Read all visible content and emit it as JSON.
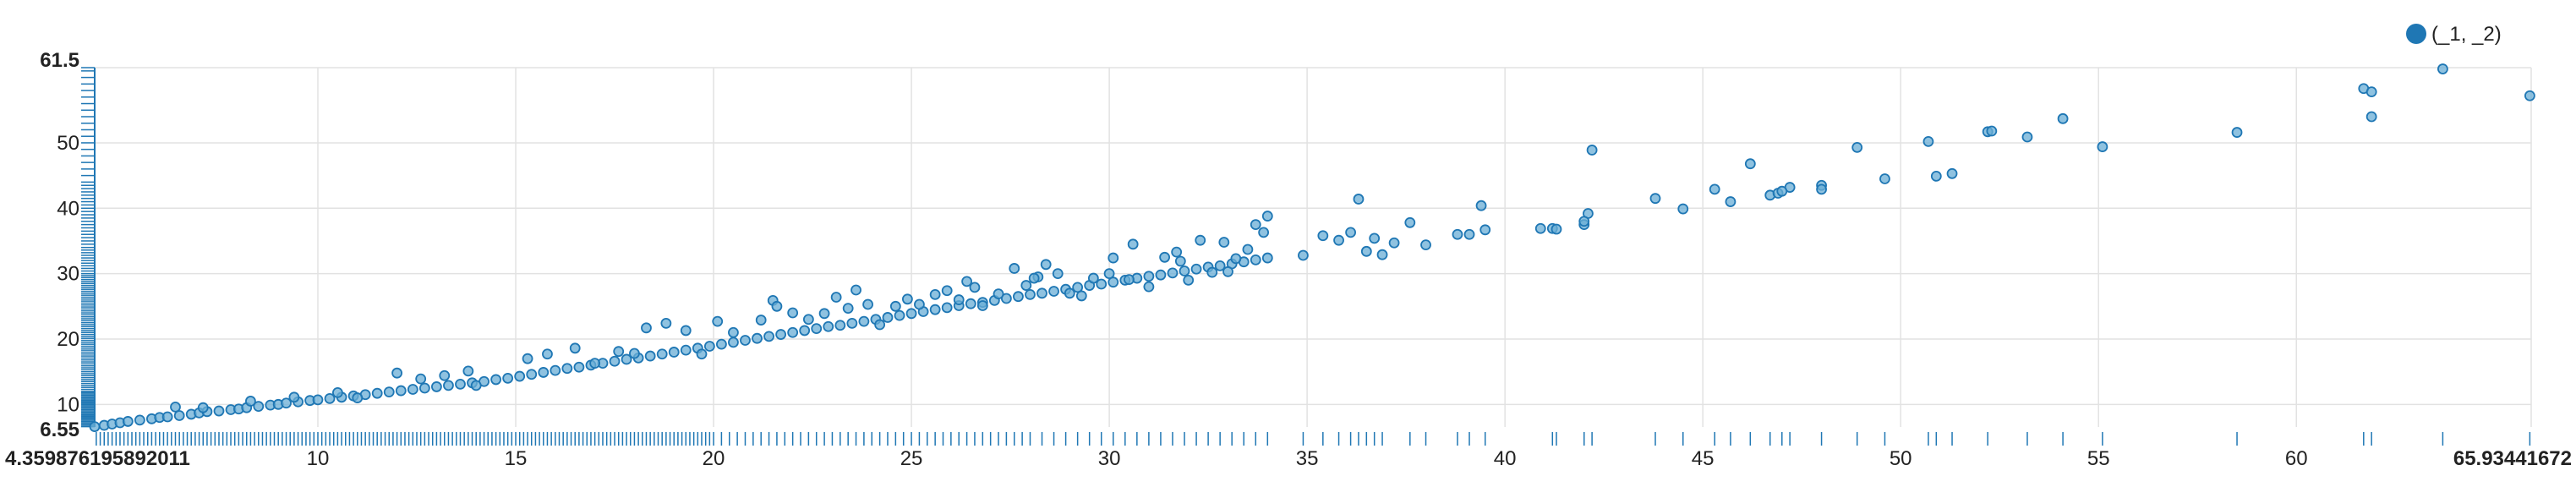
{
  "chart_data": {
    "type": "scatter",
    "title": "",
    "xlabel": "",
    "ylabel": "",
    "xlim": [
      4.359876195892011,
      65.93441672
    ],
    "ylim": [
      6.55,
      61.5
    ],
    "x_min_label": "4.359876195892011",
    "x_max_label": "65.93441672",
    "y_min_label": "6.55",
    "y_max_label": "61.5",
    "x_ticks": [
      10,
      15,
      20,
      25,
      30,
      35,
      40,
      45,
      50,
      55,
      60
    ],
    "y_ticks": [
      10,
      20,
      30,
      40,
      50
    ],
    "grid": true,
    "legend": {
      "placement": "top-right",
      "label": "(_1, _2)"
    },
    "colors": {
      "point_fill": "#6aaed6",
      "point_stroke": "#1f77b4",
      "rug": "#1f77b4",
      "grid": "#e2e2e2",
      "axis": "#1f77b4"
    },
    "series": [
      {
        "name": "(_1, _2)",
        "points": [
          [
            4.36,
            6.6
          ],
          [
            4.6,
            6.8
          ],
          [
            4.8,
            7.0
          ],
          [
            5.0,
            7.2
          ],
          [
            5.2,
            7.4
          ],
          [
            5.5,
            7.6
          ],
          [
            5.8,
            7.8
          ],
          [
            6.0,
            8.0
          ],
          [
            6.2,
            8.1
          ],
          [
            6.5,
            8.3
          ],
          [
            6.8,
            8.5
          ],
          [
            7.0,
            8.7
          ],
          [
            7.2,
            8.9
          ],
          [
            7.5,
            9.0
          ],
          [
            7.8,
            9.2
          ],
          [
            8.0,
            9.3
          ],
          [
            8.2,
            9.5
          ],
          [
            8.5,
            9.7
          ],
          [
            8.8,
            9.9
          ],
          [
            9.0,
            10.0
          ],
          [
            9.2,
            10.2
          ],
          [
            9.5,
            10.4
          ],
          [
            9.8,
            10.6
          ],
          [
            10.0,
            10.7
          ],
          [
            10.3,
            10.9
          ],
          [
            10.6,
            11.1
          ],
          [
            10.9,
            11.3
          ],
          [
            11.2,
            11.5
          ],
          [
            11.5,
            11.7
          ],
          [
            11.8,
            11.9
          ],
          [
            12.1,
            12.1
          ],
          [
            12.4,
            12.3
          ],
          [
            12.7,
            12.5
          ],
          [
            13.0,
            12.7
          ],
          [
            13.3,
            12.9
          ],
          [
            13.6,
            13.1
          ],
          [
            13.9,
            13.3
          ],
          [
            14.2,
            13.5
          ],
          [
            14.5,
            13.8
          ],
          [
            14.8,
            14.0
          ],
          [
            15.1,
            14.3
          ],
          [
            15.4,
            14.6
          ],
          [
            15.7,
            14.9
          ],
          [
            16.0,
            15.2
          ],
          [
            16.3,
            15.5
          ],
          [
            16.6,
            15.7
          ],
          [
            16.9,
            16.0
          ],
          [
            17.2,
            16.3
          ],
          [
            17.5,
            16.6
          ],
          [
            17.8,
            16.9
          ],
          [
            18.1,
            17.1
          ],
          [
            18.4,
            17.4
          ],
          [
            18.7,
            17.7
          ],
          [
            19.0,
            18.0
          ],
          [
            19.3,
            18.3
          ],
          [
            19.6,
            18.6
          ],
          [
            19.9,
            18.9
          ],
          [
            20.2,
            19.2
          ],
          [
            20.5,
            19.5
          ],
          [
            20.8,
            19.8
          ],
          [
            21.1,
            20.1
          ],
          [
            21.4,
            20.4
          ],
          [
            21.7,
            20.7
          ],
          [
            22.0,
            21.0
          ],
          [
            22.3,
            21.3
          ],
          [
            22.6,
            21.6
          ],
          [
            22.9,
            21.9
          ],
          [
            23.2,
            22.1
          ],
          [
            23.5,
            22.4
          ],
          [
            23.8,
            22.7
          ],
          [
            24.1,
            23.0
          ],
          [
            24.4,
            23.3
          ],
          [
            24.7,
            23.6
          ],
          [
            25.0,
            23.9
          ],
          [
            25.3,
            24.2
          ],
          [
            25.6,
            24.5
          ],
          [
            25.9,
            24.8
          ],
          [
            26.2,
            25.1
          ],
          [
            26.5,
            25.4
          ],
          [
            26.8,
            25.6
          ],
          [
            27.1,
            25.9
          ],
          [
            27.4,
            26.2
          ],
          [
            27.7,
            26.5
          ],
          [
            28.0,
            26.8
          ],
          [
            28.3,
            27.0
          ],
          [
            28.6,
            27.3
          ],
          [
            28.9,
            27.6
          ],
          [
            29.2,
            27.9
          ],
          [
            29.5,
            28.2
          ],
          [
            29.8,
            28.4
          ],
          [
            30.1,
            28.7
          ],
          [
            30.4,
            29.0
          ],
          [
            30.7,
            29.3
          ],
          [
            31.0,
            29.6
          ],
          [
            31.3,
            29.8
          ],
          [
            31.6,
            30.1
          ],
          [
            31.9,
            30.4
          ],
          [
            32.2,
            30.7
          ],
          [
            32.5,
            31.0
          ],
          [
            32.8,
            31.2
          ],
          [
            33.1,
            31.5
          ],
          [
            33.4,
            31.8
          ],
          [
            33.7,
            32.1
          ],
          [
            34.0,
            32.4
          ],
          [
            6.4,
            9.6
          ],
          [
            7.1,
            9.5
          ],
          [
            8.3,
            10.5
          ],
          [
            9.4,
            11.1
          ],
          [
            10.5,
            11.8
          ],
          [
            11.0,
            11.0
          ],
          [
            12.0,
            14.8
          ],
          [
            12.6,
            13.9
          ],
          [
            13.2,
            14.4
          ],
          [
            13.8,
            15.1
          ],
          [
            14.0,
            12.9
          ],
          [
            15.3,
            17.0
          ],
          [
            15.8,
            17.7
          ],
          [
            16.5,
            18.6
          ],
          [
            17.0,
            16.3
          ],
          [
            17.6,
            18.1
          ],
          [
            18.0,
            17.8
          ],
          [
            18.3,
            21.7
          ],
          [
            18.8,
            22.4
          ],
          [
            19.3,
            21.3
          ],
          [
            19.7,
            17.7
          ],
          [
            20.1,
            22.7
          ],
          [
            20.5,
            21.0
          ],
          [
            21.2,
            22.9
          ],
          [
            21.5,
            25.9
          ],
          [
            21.6,
            25.0
          ],
          [
            22.4,
            23.0
          ],
          [
            22.8,
            23.9
          ],
          [
            23.1,
            26.4
          ],
          [
            23.4,
            24.7
          ],
          [
            23.6,
            27.5
          ],
          [
            23.9,
            25.3
          ],
          [
            24.2,
            22.2
          ],
          [
            24.6,
            25.0
          ],
          [
            24.9,
            26.1
          ],
          [
            25.2,
            25.3
          ],
          [
            25.6,
            26.8
          ],
          [
            25.9,
            27.4
          ],
          [
            26.2,
            26.0
          ],
          [
            26.6,
            27.9
          ],
          [
            26.8,
            25.1
          ],
          [
            27.2,
            26.9
          ],
          [
            27.6,
            30.8
          ],
          [
            27.9,
            28.2
          ],
          [
            28.2,
            29.5
          ],
          [
            28.4,
            31.4
          ],
          [
            28.7,
            30.0
          ],
          [
            29.0,
            27.0
          ],
          [
            29.3,
            26.6
          ],
          [
            29.6,
            29.3
          ],
          [
            30.0,
            30.0
          ],
          [
            30.1,
            32.4
          ],
          [
            30.5,
            29.1
          ],
          [
            30.6,
            34.5
          ],
          [
            31.0,
            28.0
          ],
          [
            31.4,
            32.5
          ],
          [
            31.7,
            33.3
          ],
          [
            32.0,
            29.0
          ],
          [
            32.3,
            35.1
          ],
          [
            32.6,
            30.2
          ],
          [
            32.9,
            34.8
          ],
          [
            33.2,
            32.3
          ],
          [
            33.5,
            33.7
          ],
          [
            33.7,
            37.5
          ],
          [
            33.9,
            36.3
          ],
          [
            34.0,
            38.8
          ],
          [
            34.9,
            32.8
          ],
          [
            35.4,
            35.8
          ],
          [
            35.8,
            35.1
          ],
          [
            36.1,
            36.3
          ],
          [
            36.3,
            41.4
          ],
          [
            36.5,
            33.4
          ],
          [
            36.7,
            35.4
          ],
          [
            36.9,
            32.9
          ],
          [
            37.2,
            34.7
          ],
          [
            37.6,
            37.8
          ],
          [
            38.0,
            34.4
          ],
          [
            38.8,
            36.0
          ],
          [
            39.1,
            36.0
          ],
          [
            39.4,
            40.4
          ],
          [
            39.5,
            36.7
          ],
          [
            41.2,
            36.9
          ],
          [
            41.3,
            36.8
          ],
          [
            42.0,
            37.5
          ],
          [
            42.1,
            39.2
          ],
          [
            42.2,
            48.9
          ],
          [
            42.0,
            38.0
          ],
          [
            43.8,
            41.5
          ],
          [
            44.5,
            39.9
          ],
          [
            45.3,
            42.9
          ],
          [
            45.7,
            41.0
          ],
          [
            46.2,
            46.8
          ],
          [
            46.7,
            42.0
          ],
          [
            46.9,
            42.3
          ],
          [
            47.2,
            43.2
          ],
          [
            47.0,
            42.6
          ],
          [
            48.0,
            43.5
          ],
          [
            48.0,
            42.9
          ],
          [
            48.9,
            49.3
          ],
          [
            49.6,
            44.5
          ],
          [
            50.7,
            50.2
          ],
          [
            50.9,
            44.9
          ],
          [
            51.3,
            45.3
          ],
          [
            52.2,
            51.7
          ],
          [
            52.3,
            51.8
          ],
          [
            53.2,
            50.9
          ],
          [
            54.1,
            53.7
          ],
          [
            55.1,
            49.4
          ],
          [
            58.5,
            51.6
          ],
          [
            61.7,
            58.3
          ],
          [
            61.9,
            57.8
          ],
          [
            61.9,
            54.0
          ],
          [
            63.7,
            61.3
          ],
          [
            65.9,
            57.2
          ],
          [
            40.9,
            36.9
          ],
          [
            33.0,
            30.3
          ],
          [
            28.1,
            29.3
          ],
          [
            31.8,
            31.9
          ],
          [
            26.4,
            28.8
          ],
          [
            22.0,
            24.0
          ]
        ]
      }
    ],
    "rug_x": [
      4.4,
      4.5,
      4.6,
      4.7,
      4.8,
      4.9,
      5.0,
      5.1,
      5.2,
      5.3,
      5.4,
      5.5,
      5.6,
      5.7,
      5.8,
      5.9,
      6.0,
      6.1,
      6.2,
      6.3,
      6.4,
      6.5,
      6.6,
      6.7,
      6.8,
      6.9,
      7.0,
      7.1,
      7.2,
      7.3,
      7.4,
      7.5,
      7.6,
      7.7,
      7.8,
      7.9,
      8.0,
      8.1,
      8.2,
      8.3,
      8.4,
      8.5,
      8.6,
      8.7,
      8.8,
      8.9,
      9.0,
      9.1,
      9.2,
      9.3,
      9.4,
      9.5,
      9.6,
      9.7,
      9.8,
      9.9,
      10.0,
      10.1,
      10.2,
      10.3,
      10.4,
      10.5,
      10.6,
      10.7,
      10.8,
      10.9,
      11.0,
      11.1,
      11.2,
      11.3,
      11.4,
      11.5,
      11.6,
      11.7,
      11.8,
      11.9,
      12.0,
      12.1,
      12.2,
      12.3,
      12.4,
      12.5,
      12.6,
      12.7,
      12.8,
      12.9,
      13.0,
      13.1,
      13.2,
      13.3,
      13.4,
      13.5,
      13.6,
      13.7,
      13.8,
      13.9,
      14.0,
      14.1,
      14.2,
      14.3,
      14.4,
      14.5,
      14.6,
      14.7,
      14.8,
      14.9,
      15.0,
      15.1,
      15.2,
      15.3,
      15.4,
      15.5,
      15.6,
      15.7,
      15.8,
      15.9,
      16.0,
      16.1,
      16.2,
      16.3,
      16.4,
      16.5,
      16.6,
      16.7,
      16.8,
      16.9,
      17.0,
      17.1,
      17.2,
      17.3,
      17.4,
      17.5,
      17.6,
      17.7,
      17.8,
      17.9,
      18.0,
      18.1,
      18.2,
      18.3,
      18.4,
      18.5,
      18.6,
      18.7,
      18.8,
      18.9,
      19.0,
      19.1,
      19.2,
      19.3,
      19.4,
      19.5,
      19.6,
      19.7,
      19.8,
      19.9,
      20.0,
      20.2,
      20.4,
      20.6,
      20.8,
      21.0,
      21.2,
      21.4,
      21.6,
      21.8,
      22.0,
      22.2,
      22.4,
      22.6,
      22.8,
      23.0,
      23.2,
      23.4,
      23.6,
      23.8,
      24.0,
      24.2,
      24.4,
      24.6,
      24.8,
      25.0,
      25.2,
      25.4,
      25.6,
      25.8,
      26.0,
      26.2,
      26.4,
      26.6,
      26.8,
      27.0,
      27.2,
      27.4,
      27.6,
      27.8,
      28.0,
      28.3,
      28.6,
      28.9,
      29.2,
      29.5,
      29.8,
      30.1,
      30.4,
      30.7,
      31.0,
      31.3,
      31.6,
      31.9,
      32.2,
      32.5,
      32.8,
      33.1,
      33.4,
      33.7,
      34.0,
      34.9,
      35.4,
      35.8,
      36.1,
      36.3,
      36.5,
      36.7,
      36.9,
      37.6,
      38.0,
      38.8,
      39.1,
      39.5,
      41.2,
      41.3,
      42.0,
      42.2,
      43.8,
      44.5,
      45.3,
      45.7,
      46.2,
      46.7,
      47.0,
      47.2,
      48.0,
      48.9,
      49.6,
      50.7,
      50.9,
      51.3,
      52.2,
      53.2,
      54.1,
      55.1,
      58.5,
      61.7,
      61.9,
      63.7,
      65.9
    ],
    "rug_y": [
      6.6,
      6.8,
      7.0,
      7.2,
      7.4,
      7.6,
      7.8,
      8.0,
      8.2,
      8.4,
      8.6,
      8.8,
      9.0,
      9.2,
      9.4,
      9.6,
      9.8,
      10.0,
      10.2,
      10.4,
      10.6,
      10.8,
      11.0,
      11.2,
      11.4,
      11.6,
      11.8,
      12.0,
      12.3,
      12.6,
      12.9,
      13.2,
      13.5,
      13.8,
      14.1,
      14.4,
      14.7,
      15.0,
      15.3,
      15.6,
      15.9,
      16.2,
      16.5,
      16.8,
      17.1,
      17.4,
      17.7,
      18.0,
      18.3,
      18.6,
      18.9,
      19.2,
      19.5,
      19.8,
      20.1,
      20.4,
      20.7,
      21.0,
      21.3,
      21.6,
      21.9,
      22.2,
      22.5,
      22.8,
      23.1,
      23.4,
      23.7,
      24.0,
      24.3,
      24.6,
      24.9,
      25.2,
      25.5,
      25.8,
      26.1,
      26.4,
      26.7,
      27.0,
      27.3,
      27.6,
      27.9,
      28.2,
      28.5,
      28.8,
      29.1,
      29.4,
      29.7,
      30.0,
      30.4,
      30.8,
      31.2,
      31.6,
      32.0,
      32.4,
      32.8,
      33.2,
      33.6,
      34.0,
      34.5,
      35.0,
      35.5,
      36.0,
      36.5,
      37.0,
      37.5,
      38.0,
      38.5,
      39.0,
      39.5,
      40.0,
      40.5,
      41.0,
      41.5,
      42.0,
      42.5,
      43.0,
      43.5,
      44.0,
      45.0,
      46.0,
      47.0,
      48.0,
      49.0,
      50.0,
      51.0,
      52.0,
      53.0,
      54.0,
      55.0,
      56.0,
      57.0,
      58.0,
      59.0,
      60.0,
      61.0,
      61.5
    ]
  }
}
